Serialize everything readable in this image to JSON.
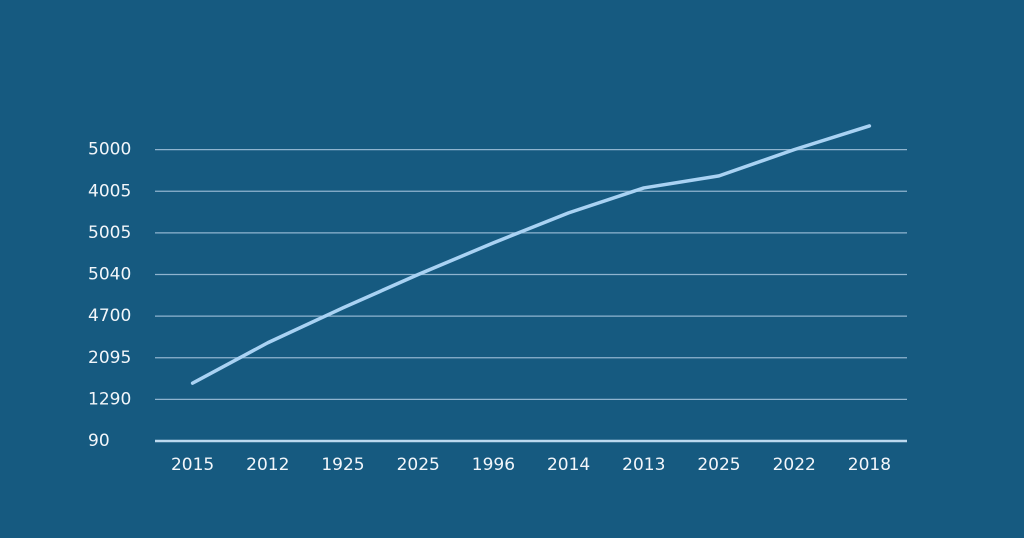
{
  "chart_data": {
    "type": "line",
    "categories": [
      "2015",
      "2012",
      "1925",
      "2025",
      "1996",
      "2014",
      "2013",
      "2025",
      "2022",
      "2018"
    ],
    "series": [
      {
        "color": "#a9d2f3",
        "values": [
          1.39,
          2.36,
          3.2,
          4.0,
          4.76,
          5.48,
          6.08,
          6.37,
          7.0,
          7.57
        ]
      }
    ],
    "ylim": [
      0,
      8
    ],
    "yticks": [
      {
        "value": 0,
        "label": "90"
      },
      {
        "value": 1,
        "label": "1290"
      },
      {
        "value": 2,
        "label": "2095"
      },
      {
        "value": 3,
        "label": "4700"
      },
      {
        "value": 4,
        "label": "5040"
      },
      {
        "value": 5,
        "label": "5005"
      },
      {
        "value": 6,
        "label": "4005"
      },
      {
        "value": 7,
        "label": "5000"
      }
    ],
    "grid": true
  }
}
